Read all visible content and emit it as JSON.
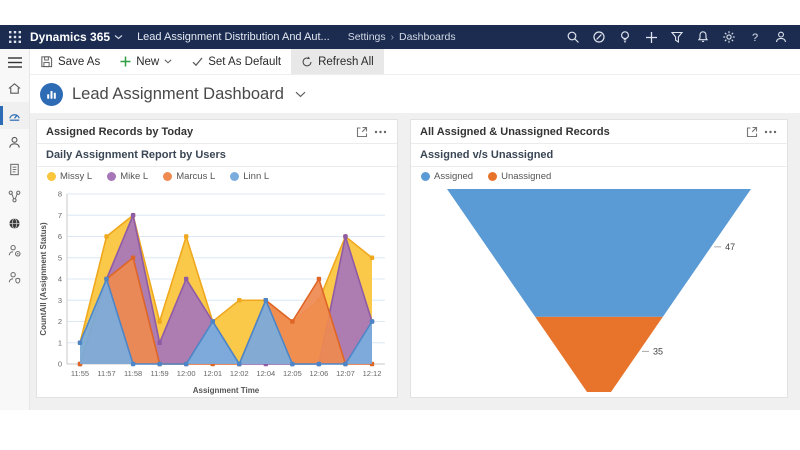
{
  "brand": {
    "topbar_bg": "#1B2C50",
    "accent": "#2D6CB4"
  },
  "top_nav": {
    "app_name": "Dynamics 365",
    "area_title": "Lead Assignment Distribution And Aut...",
    "breadcrumb": [
      "Settings",
      "Dashboards"
    ],
    "help_glyph": "?",
    "icons": [
      "search",
      "guidance",
      "lightbulb",
      "quick-create",
      "filter",
      "notifications",
      "settings",
      "help",
      "account"
    ]
  },
  "command_bar": {
    "buttons": [
      {
        "label": "Save As",
        "icon": "save-icon"
      },
      {
        "label": "New",
        "icon": "add-icon",
        "has_dropdown": true
      },
      {
        "label": "Set As Default",
        "icon": "check-icon"
      },
      {
        "label": "Refresh All",
        "icon": "refresh-icon",
        "active": true
      }
    ]
  },
  "sidebar": {
    "items": [
      "menu",
      "home",
      "dashboards",
      "contacts",
      "activities",
      "flows",
      "web-resources",
      "user-settings",
      "user-security"
    ],
    "selected": "dashboards"
  },
  "page_header": {
    "title": "Lead Assignment Dashboard"
  },
  "panels": [
    {
      "title": "Assigned Records by Today"
    },
    {
      "title": "All Assigned & Unassigned Records"
    }
  ],
  "chart_data": [
    {
      "type": "area",
      "title": "Daily Assignment Report by Users",
      "xlabel": "Assignment Time",
      "ylabel": "CountAll (Assignment Status)",
      "ylim": [
        0,
        8
      ],
      "yticks": [
        0,
        1,
        2,
        3,
        4,
        5,
        6,
        7,
        8
      ],
      "grid": true,
      "legend_position": "top",
      "categories": [
        "11:55",
        "11:57",
        "11:58",
        "11:59",
        "12:00",
        "12:01",
        "12:02",
        "12:04",
        "12:05",
        "12:06",
        "12:07",
        "12:12"
      ],
      "series": [
        {
          "name": "Missy L",
          "color": "#FBC53C",
          "stroke": "#EFA81E",
          "values": [
            1,
            6,
            7,
            2,
            6,
            2,
            3,
            3,
            2,
            3,
            6,
            5
          ]
        },
        {
          "name": "Mike L",
          "color": "#A776B8",
          "stroke": "#8E5BA6",
          "values": [
            0,
            4,
            7,
            1,
            4,
            2,
            0,
            0,
            0,
            0,
            6,
            2
          ]
        },
        {
          "name": "Marcus L",
          "color": "#EF8A51",
          "stroke": "#DE6526",
          "values": [
            0,
            4,
            5,
            0,
            0,
            0,
            0,
            3,
            2,
            4,
            0,
            0
          ]
        },
        {
          "name": "Linn L",
          "color": "#7AACDE",
          "stroke": "#4C86C8",
          "values": [
            1,
            4,
            0,
            0,
            0,
            2,
            0,
            3,
            0,
            0,
            0,
            2
          ]
        }
      ]
    },
    {
      "type": "funnel",
      "title": "Assigned v/s Unassigned",
      "legend_position": "top",
      "segments": [
        {
          "name": "Assigned",
          "color": "#5B9BD5",
          "value": 47
        },
        {
          "name": "Unassigned",
          "color": "#E8742C",
          "value": 35
        }
      ]
    }
  ]
}
